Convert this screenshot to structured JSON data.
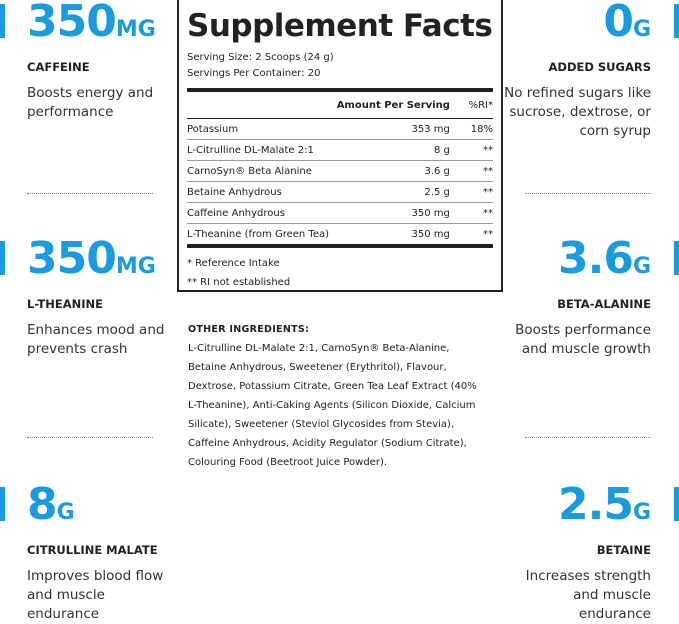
{
  "colors": {
    "accent": "#1a9be0",
    "text": "#222222"
  },
  "left": [
    {
      "value": "350",
      "unit": "MG",
      "label": "CAFFEINE",
      "desc": "Boosts energy and performance"
    },
    {
      "value": "350",
      "unit": "MG",
      "label": "L-THEANINE",
      "desc": "Enhances mood and prevents crash"
    },
    {
      "value": "8",
      "unit": "G",
      "label": "CITRULLINE MALATE",
      "desc": "Improves blood flow and muscle endurance"
    }
  ],
  "right": [
    {
      "value": "0",
      "unit": "G",
      "label": "ADDED SUGARS",
      "desc": "No refined sugars like sucrose, dextrose, or corn syrup"
    },
    {
      "value": "3.6",
      "unit": "G",
      "label": "BETA-ALANINE",
      "desc": "Boosts performance and muscle growth"
    },
    {
      "value": "2.5",
      "unit": "G",
      "label": "BETAINE",
      "desc": "Increases strength and muscle endurance"
    }
  ],
  "facts": {
    "title": "Supplement Facts",
    "serving_size": "Serving Size: 2 Scoops (24 g)",
    "servings": "Servings Per Container: 20",
    "col_amount": "Amount Per Serving",
    "col_ri": "%RI*",
    "rows": [
      {
        "name": "Potassium",
        "amount": "353 mg",
        "ri": "18%"
      },
      {
        "name": "L-Citrulline DL-Malate 2:1",
        "amount": "8 g",
        "ri": "**"
      },
      {
        "name": "CarnoSyn® Beta Alanine",
        "amount": "3.6 g",
        "ri": "**"
      },
      {
        "name": "Betaine Anhydrous",
        "amount": "2.5 g",
        "ri": "**"
      },
      {
        "name": "Caffeine Anhydrous",
        "amount": "350 mg",
        "ri": "**"
      },
      {
        "name": "L-Theanine (from Green Tea)",
        "amount": "350 mg",
        "ri": "**"
      }
    ],
    "note1": "* Reference Intake",
    "note2": "** RI not established"
  },
  "other": {
    "heading": "OTHER INGREDIENTS:",
    "text": "L-Citrulline DL-Malate 2:1, CarnoSyn® Beta-Alanine, Betaine Anhydrous, Sweetener (Erythritol), Flavour, Dextrose, Potassium Citrate, Green Tea Leaf Extract (40% L-Theanine), Anti-Caking Agents (Silicon Dioxide, Calcium Silicate), Sweetener (Steviol Glycosides from Stevia), Caffeine Anhydrous, Acidity Regulator (Sodium Citrate), Colouring Food (Beetroot Juice Powder)."
  }
}
